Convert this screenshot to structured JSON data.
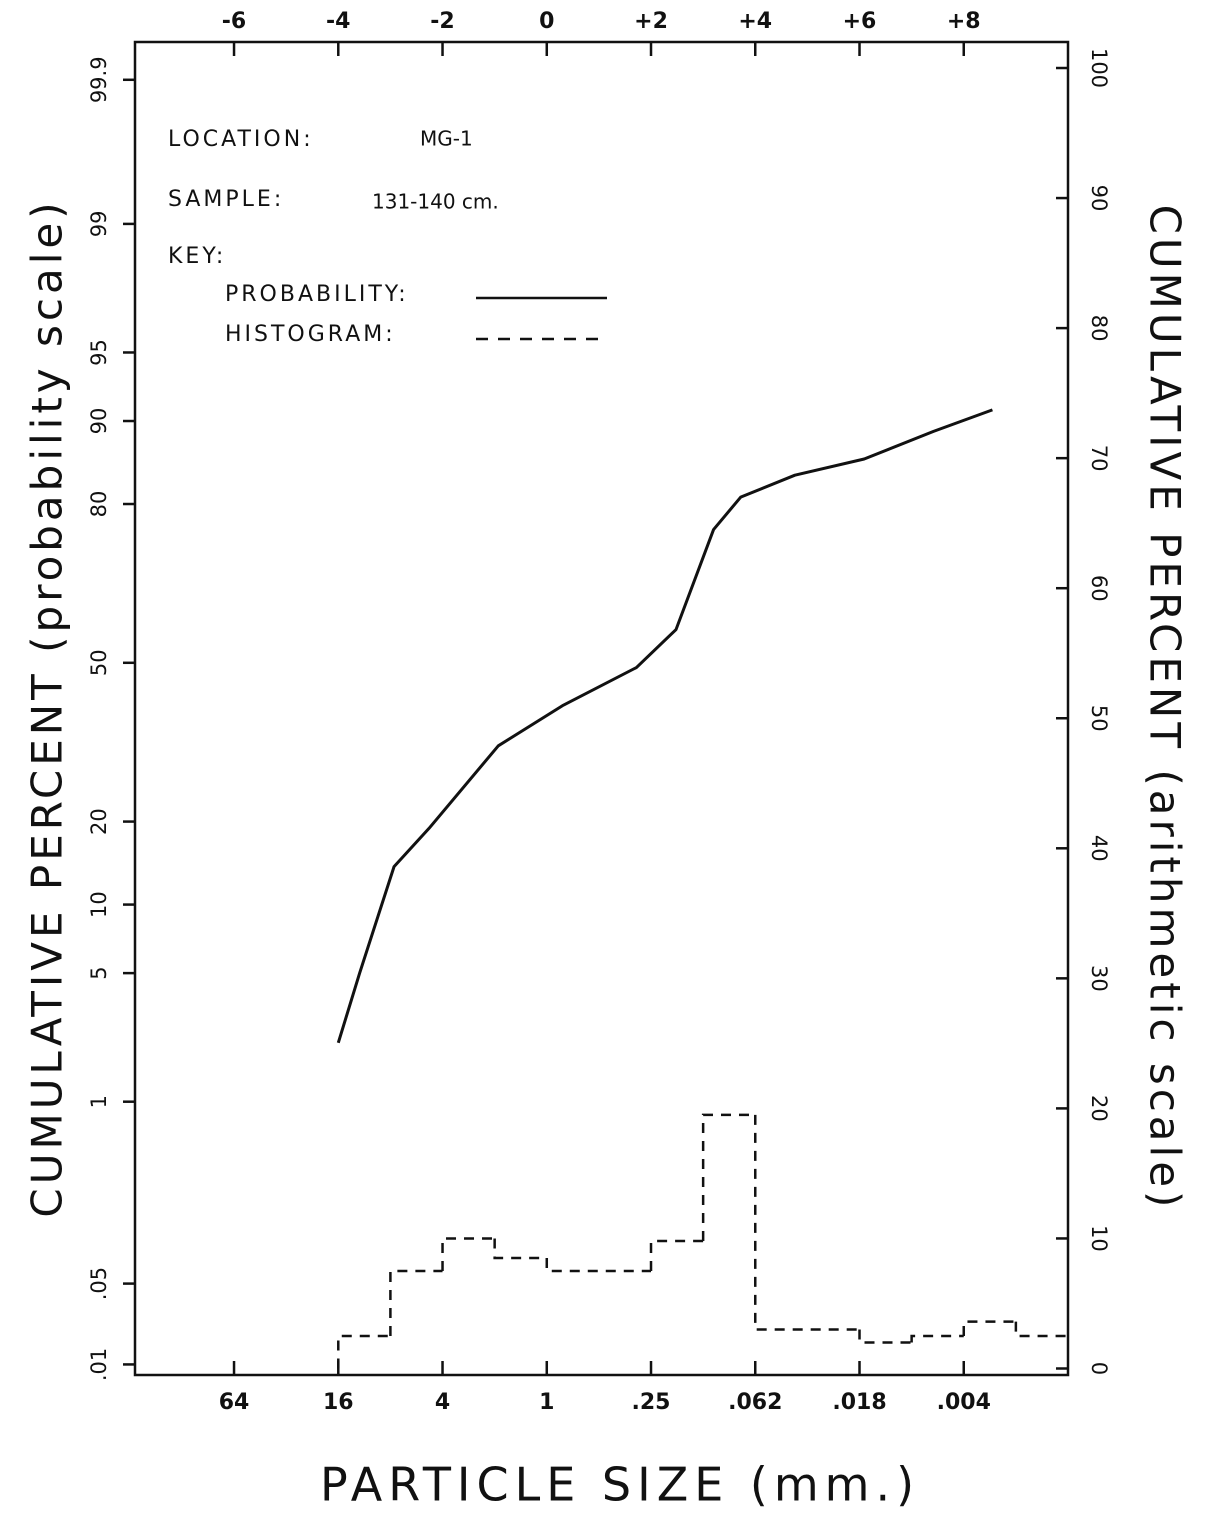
{
  "chart_data": {
    "type": "line",
    "ylabel": "CUMULATIVE PERCENT (probability scale)",
    "y2label": "CUMULATIVE PERCENT (arithmetic scale)",
    "xlabel": "PARTICLE SIZE (mm.)",
    "annotations": [
      "LOCATION:",
      "MG-1",
      "SAMPLE:",
      "131-140 cm.",
      "KEY:"
    ],
    "xlim": [
      -7.9,
      10
    ],
    "xticks": [
      -6,
      -4,
      -2,
      0,
      {
        "value": 2,
        "label": "+2"
      },
      {
        "value": 4,
        "label": "+4"
      },
      {
        "value": 6,
        "label": "+6"
      },
      {
        "value": 8,
        "label": "+8"
      }
    ],
    "x2ticks": [
      {
        "value": -6,
        "label": "64"
      },
      {
        "value": -4,
        "label": "16"
      },
      {
        "value": -2,
        "label": "4"
      },
      {
        "value": 0,
        "label": "1"
      },
      {
        "value": 2,
        "label": ".25"
      },
      {
        "value": 4,
        "label": ".062"
      },
      {
        "value": 6,
        "label": ".018"
      },
      {
        "value": 8,
        "label": ".004"
      }
    ],
    "yscale": "probability",
    "ylim": [
      0.008,
      99.95
    ],
    "yticks": [
      99.9,
      99,
      95,
      90,
      80,
      50,
      20,
      10,
      5,
      1,
      {
        "value": 0.05,
        "label": ".05"
      },
      {
        "value": 0.01,
        "label": ".01"
      }
    ],
    "y2lim": [
      -0.5,
      102
    ],
    "y2ticks": [
      0,
      10,
      20,
      30,
      40,
      50,
      60,
      70,
      80,
      90,
      100
    ],
    "series": [
      {
        "name": "PROBABILITY:",
        "color": "#111111",
        "x": [
          -4.0,
          -3.59,
          -2.93,
          -2.26,
          -0.93,
          0.3,
          1.72,
          2.48,
          3.2,
          3.72,
          4.76,
          6.09,
          7.42,
          8.55
        ],
        "values": [
          2.2,
          5,
          14,
          19,
          33,
          41,
          49,
          57,
          76,
          81,
          84,
          86,
          89,
          91
        ]
      },
      {
        "name": "HISTOGRAM:",
        "type": "histogram",
        "axis": "y2",
        "color": "#111111",
        "dashed": true,
        "bins": [
          -4,
          -3,
          -2,
          -1,
          0,
          2,
          3,
          4,
          6,
          7,
          8,
          9,
          10
        ],
        "values": [
          2.5,
          7.5,
          10,
          8.5,
          7.5,
          9.8,
          19.5,
          3,
          2,
          2.5,
          3.6,
          2.5
        ]
      }
    ]
  }
}
